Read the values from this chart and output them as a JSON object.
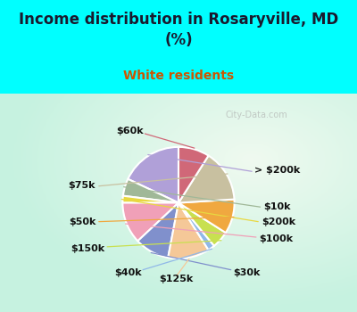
{
  "title": "Income distribution in Rosaryville, MD\n(%)",
  "subtitle": "White residents",
  "title_color": "#1a1a2e",
  "subtitle_color": "#cc5500",
  "bg_color": "#00FFFF",
  "chart_bg_color": "#e0f5ee",
  "labels": [
    "> $200k",
    "$10k",
    "$200k",
    "$100k",
    "$30k",
    "$125k",
    "$40k",
    "$150k",
    "$50k",
    "$75k",
    "$60k"
  ],
  "values": [
    18,
    5,
    2,
    12,
    10,
    12,
    2,
    5,
    10,
    15,
    9
  ],
  "colors": [
    "#b0a0d8",
    "#a0b898",
    "#e8d840",
    "#f0a0b8",
    "#8090cc",
    "#f5c898",
    "#90b8e8",
    "#c8e050",
    "#f0a840",
    "#c8c0a0",
    "#d06878"
  ],
  "line_colors": [
    "#b0a0d8",
    "#a0b898",
    "#e8d840",
    "#f0a0b8",
    "#8090cc",
    "#f5c898",
    "#90b8e8",
    "#c8e050",
    "#f0a840",
    "#c8c0a0",
    "#d06878"
  ],
  "startangle": 90,
  "wedge_edge_color": "white",
  "wedge_linewidth": 1.5,
  "watermark": "City-Data.com",
  "label_fontsize": 8,
  "label_color": "#111111",
  "label_fontweight": "bold"
}
